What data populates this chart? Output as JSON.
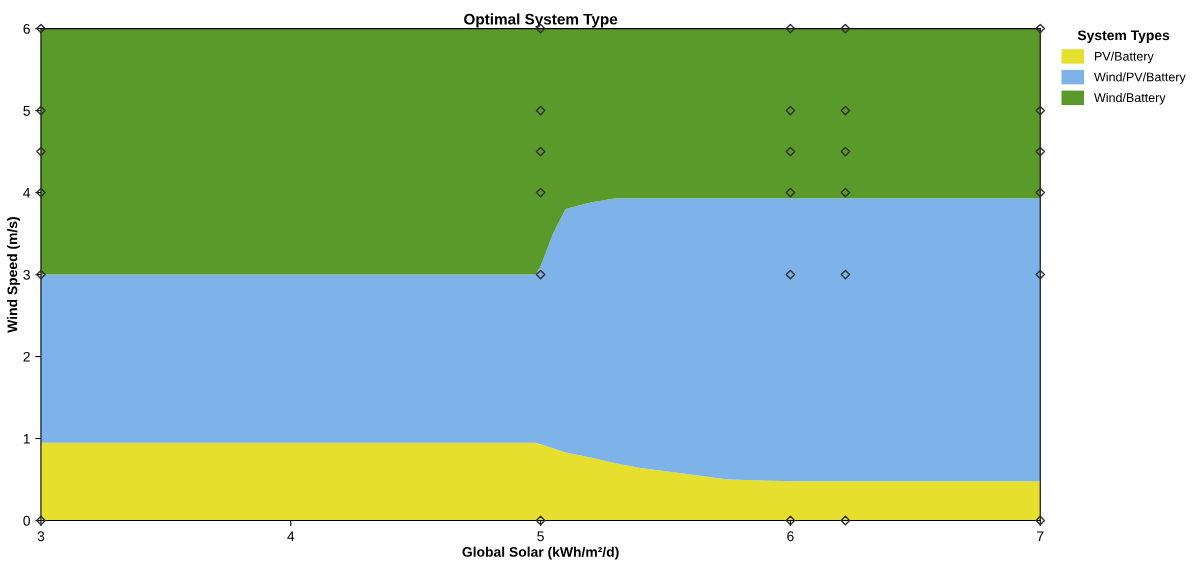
{
  "chart_data": {
    "type": "area",
    "title": "Optimal System Type",
    "xlabel": "Global Solar (kWh/m²/d)",
    "ylabel": "Wind Speed (m/s)",
    "legend_title": "System Types",
    "stacked": true,
    "x": [
      3,
      4.98,
      5.0,
      5.05,
      5.1,
      5.2,
      5.3,
      5.4,
      5.5,
      5.6,
      5.75,
      6,
      7
    ],
    "series": [
      {
        "name": "PV/Battery",
        "color": "#e6df2e",
        "values": [
          0.95,
          0.95,
          0.93,
          0.88,
          0.83,
          0.77,
          0.7,
          0.64,
          0.6,
          0.56,
          0.5,
          0.48,
          0.48
        ]
      },
      {
        "name": "Wind/PV/Battery",
        "color": "#7db3e8",
        "values": [
          2.05,
          2.05,
          2.17,
          2.62,
          2.97,
          3.11,
          3.23,
          3.29,
          3.33,
          3.37,
          3.43,
          3.45,
          3.45
        ]
      },
      {
        "name": "Wind/Battery",
        "color": "#5a9a2a",
        "values": [
          3.0,
          3.0,
          2.9,
          2.5,
          2.2,
          2.12,
          2.07,
          2.07,
          2.07,
          2.07,
          2.07,
          2.07,
          2.07
        ]
      },
      {
        "type": "scatter",
        "color": "#303030",
        "marker": "diamond",
        "x": [
          3,
          3,
          3,
          3,
          3,
          3,
          5,
          5,
          5,
          5,
          5,
          5,
          6,
          6,
          6,
          6,
          6,
          6,
          6.22,
          6.22,
          6.22,
          6.22,
          6.22,
          6.22,
          7,
          7,
          7,
          7,
          7,
          7
        ],
        "values": [
          0,
          3,
          4,
          4.5,
          5,
          6,
          0,
          3,
          4,
          4.5,
          5,
          6,
          0,
          3,
          4,
          4.5,
          5,
          6,
          0,
          3,
          4,
          4.5,
          5,
          6,
          0,
          3,
          4,
          4.5,
          5,
          6
        ]
      }
    ],
    "xlim": [
      3,
      7
    ],
    "xticks": [
      3,
      4,
      5,
      6,
      7
    ],
    "ylim": [
      0,
      6
    ],
    "yticks": [
      0,
      1,
      2,
      3,
      4,
      5,
      6
    ],
    "grid": false,
    "legend": "top right"
  }
}
